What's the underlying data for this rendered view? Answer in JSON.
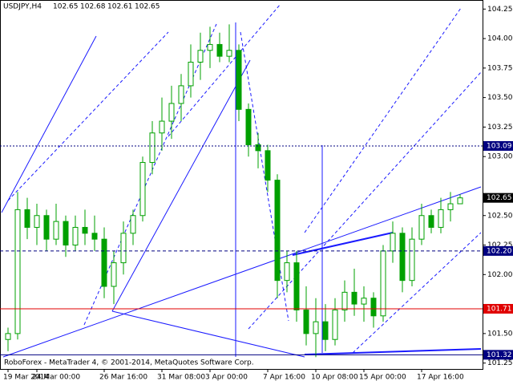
{
  "chart_data": {
    "type": "candlestick",
    "symbol": "USDJPY,H4",
    "quote": [
      102.65,
      102.68,
      102.61,
      102.65
    ],
    "footer": "RoboForex - MetaTrader 4, © 2001-2014, MetaQuotes Software Corp.",
    "categories": [
      "19 Mar 2014",
      null,
      null,
      "24 Mar 00:00",
      null,
      null,
      null,
      null,
      null,
      null,
      "26 Mar 16:00",
      null,
      null,
      null,
      null,
      null,
      "31 Mar 08:00",
      null,
      null,
      null,
      null,
      "3 Apr 00:00",
      null,
      null,
      null,
      null,
      null,
      "7 Apr 16:00",
      null,
      null,
      null,
      null,
      "10 Apr 08:00",
      null,
      null,
      null,
      null,
      "15 Apr 00:00",
      null,
      null,
      null,
      null,
      null,
      "17 Apr 16:00",
      null,
      null,
      null,
      null
    ],
    "open": [
      101.45,
      101.5,
      102.55,
      102.4,
      102.5,
      102.3,
      102.45,
      102.25,
      102.4,
      102.35,
      102.3,
      101.9,
      102.1,
      102.35,
      102.5,
      102.95,
      103.2,
      103.3,
      103.45,
      103.6,
      103.8,
      103.9,
      103.95,
      103.85,
      103.9,
      103.4,
      103.1,
      103.05,
      102.8,
      101.95,
      102.1,
      101.7,
      101.5,
      101.6,
      101.45,
      101.7,
      101.85,
      101.75,
      101.8,
      101.65,
      102.2,
      102.35,
      101.95,
      102.3,
      102.5,
      102.4,
      102.55,
      102.6
    ],
    "high": [
      101.55,
      102.7,
      102.65,
      102.6,
      102.55,
      102.6,
      102.5,
      102.5,
      102.55,
      102.5,
      102.4,
      102.2,
      102.45,
      102.55,
      103.0,
      103.3,
      103.5,
      103.6,
      103.7,
      103.95,
      104.05,
      104.1,
      104.05,
      104.12,
      103.95,
      103.45,
      103.2,
      103.1,
      102.85,
      102.2,
      102.2,
      101.9,
      101.8,
      101.75,
      101.8,
      101.95,
      102.05,
      101.9,
      101.85,
      102.25,
      102.45,
      102.4,
      102.4,
      102.6,
      102.55,
      102.65,
      102.7,
      102.68
    ],
    "low": [
      101.35,
      101.45,
      102.3,
      102.25,
      102.2,
      102.25,
      102.15,
      102.2,
      102.25,
      102.2,
      101.8,
      101.75,
      102.0,
      102.25,
      102.45,
      102.85,
      103.05,
      103.15,
      103.3,
      103.5,
      103.65,
      103.75,
      103.8,
      103.8,
      103.3,
      103.0,
      102.9,
      102.7,
      101.8,
      101.85,
      101.6,
      101.4,
      101.3,
      101.35,
      101.4,
      101.6,
      101.65,
      101.6,
      101.55,
      101.6,
      102.1,
      101.85,
      101.9,
      102.25,
      102.35,
      102.35,
      102.45,
      102.61
    ],
    "close": [
      101.5,
      102.55,
      102.4,
      102.5,
      102.3,
      102.45,
      102.25,
      102.4,
      102.35,
      102.3,
      101.9,
      102.1,
      102.35,
      102.5,
      102.95,
      103.2,
      103.3,
      103.45,
      103.6,
      103.8,
      103.9,
      103.95,
      103.85,
      103.9,
      103.4,
      103.1,
      103.05,
      102.8,
      101.95,
      102.1,
      101.7,
      101.5,
      101.6,
      101.45,
      101.7,
      101.85,
      101.75,
      101.8,
      101.65,
      102.2,
      102.35,
      101.95,
      102.3,
      102.5,
      102.4,
      102.55,
      102.6,
      102.65
    ],
    "color": "#00a000",
    "ylim": [
      101.2,
      104.32
    ],
    "yticks": [
      104.25,
      {
        "value": 104,
        "label": "104.00"
      },
      103.75,
      {
        "value": 103.5,
        "label": "103.50"
      },
      103.25,
      {
        "value": 103,
        "label": "103.00"
      },
      {
        "value": 102.5,
        "label": "102.50"
      },
      102.25,
      {
        "value": 102,
        "label": "102.00"
      },
      {
        "value": 101.5,
        "label": "101.50"
      },
      101.25
    ],
    "levels": [
      {
        "value": 103.09,
        "color": "#000080",
        "style": "dotted"
      },
      {
        "value": 102.65,
        "color": "#000000",
        "style": "none"
      },
      {
        "value": {
          "value": 102.2,
          "label": "102.20"
        },
        "color": "#000080",
        "style": "dashed"
      },
      {
        "value": 101.71,
        "color": "#e00000",
        "style": "solid"
      },
      {
        "value": 101.32,
        "color": "#000080",
        "style": "solid"
      }
    ]
  }
}
